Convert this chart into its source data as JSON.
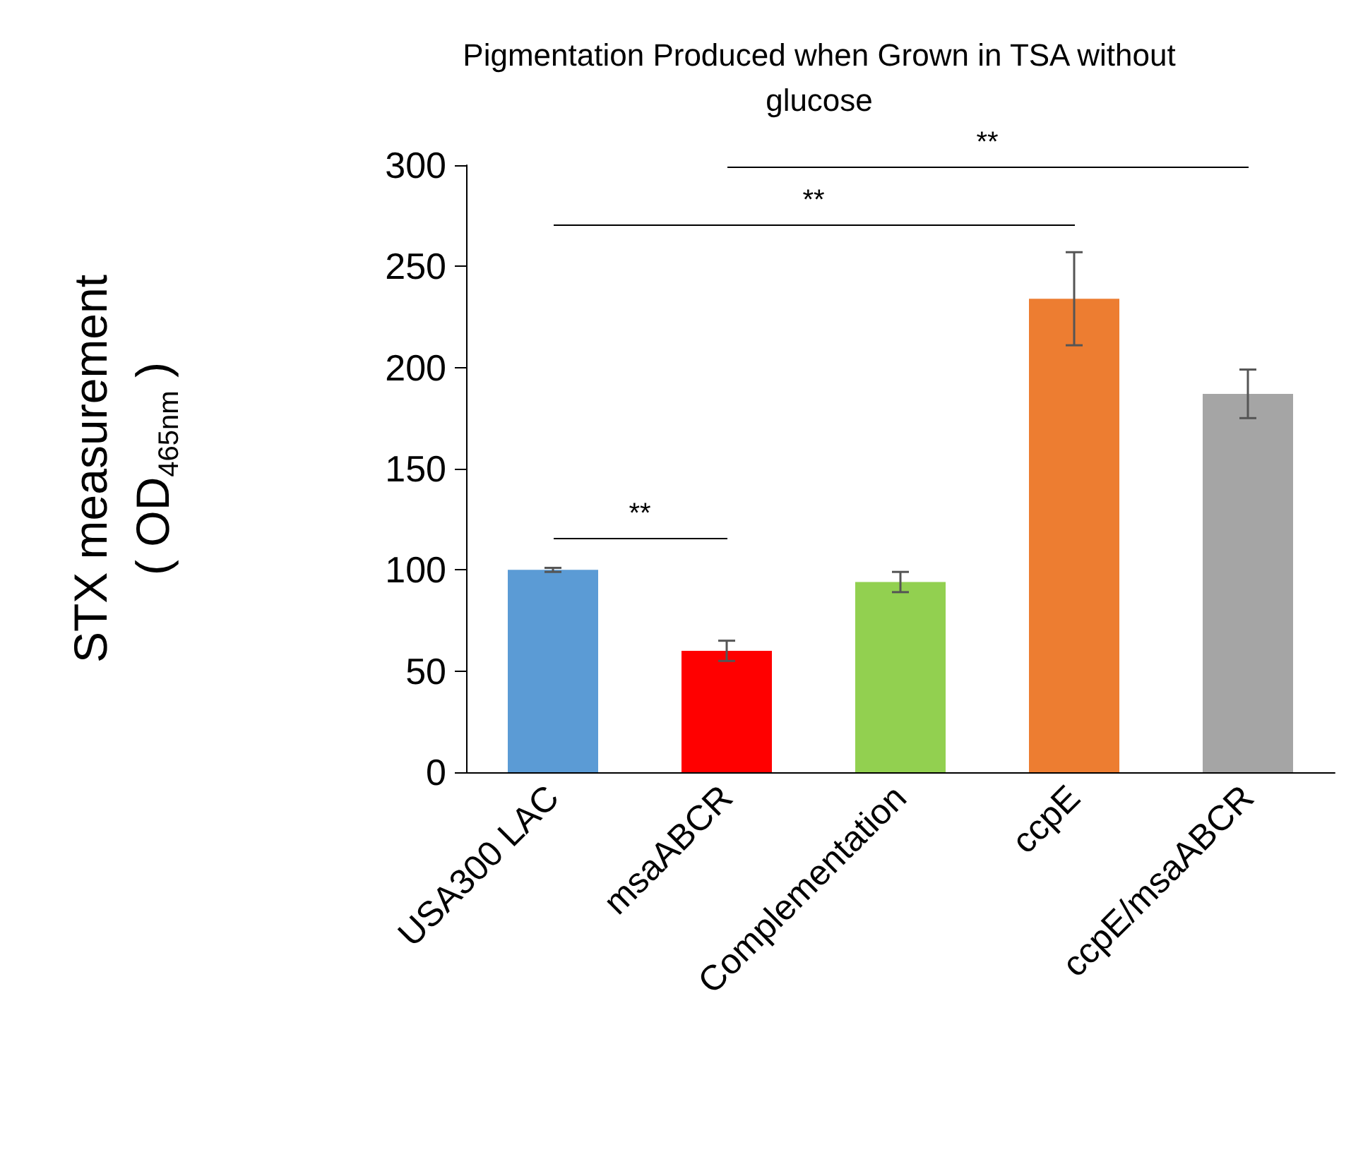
{
  "chart_data": {
    "type": "bar",
    "title": "Pigmentation Produced when Grown in TSA without\nglucose",
    "ylabel": "STX measurement\n( OD$_{465nm}$ )",
    "categories": [
      "USA300 LAC",
      "msaABCR",
      "Complementation",
      "ccpE",
      "ccpE/msaABCR"
    ],
    "values": [
      100,
      60,
      94,
      234,
      187
    ],
    "colors": [
      "#5b9bd5",
      "#ff0000",
      "#92d050",
      "#ed7d31",
      "#a5a5a5"
    ],
    "errors": [
      1,
      5,
      5,
      23,
      12
    ],
    "ylim": [
      0,
      300
    ],
    "yticks": [
      0,
      50,
      100,
      150,
      200,
      250,
      300
    ],
    "grid": false,
    "annotations": [
      "**",
      "**",
      "**"
    ]
  }
}
